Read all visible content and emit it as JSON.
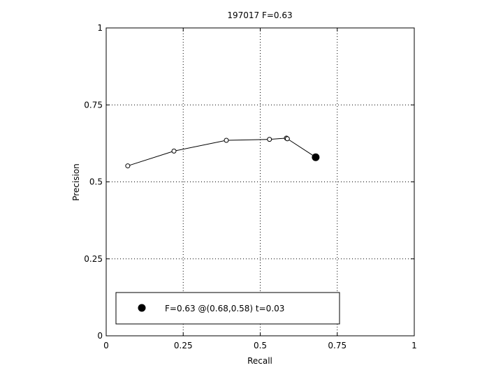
{
  "chart_data": {
    "type": "line",
    "title": "197017 F=0.63",
    "xlabel": "Recall",
    "ylabel": "Precision",
    "xlim": [
      0,
      1
    ],
    "ylim": [
      0,
      1
    ],
    "xticks": [
      0,
      0.25,
      0.5,
      0.75,
      1
    ],
    "xtick_labels": [
      "0",
      "0.25",
      "0.5",
      "0.75",
      "1"
    ],
    "yticks": [
      0,
      0.25,
      0.5,
      0.75,
      1
    ],
    "ytick_labels": [
      "0",
      "0.25",
      "0.5",
      "0.75",
      "1"
    ],
    "grid": true,
    "grid_style": "dotted",
    "series": [
      {
        "marker": "open-circle",
        "color": "#000000",
        "x": [
          0.07,
          0.22,
          0.39,
          0.53,
          0.585,
          0.588,
          0.68
        ],
        "y": [
          0.552,
          0.6,
          0.635,
          0.638,
          0.642,
          0.64,
          0.58
        ]
      }
    ],
    "highlight_point": {
      "x": 0.68,
      "y": 0.58,
      "marker": "filled-circle",
      "color": "#000000"
    },
    "legend": {
      "placement": "bottom-left",
      "entries": [
        {
          "label": "F=0.63 @(0.68,0.58) t=0.03",
          "marker": "filled-circle"
        }
      ]
    }
  }
}
